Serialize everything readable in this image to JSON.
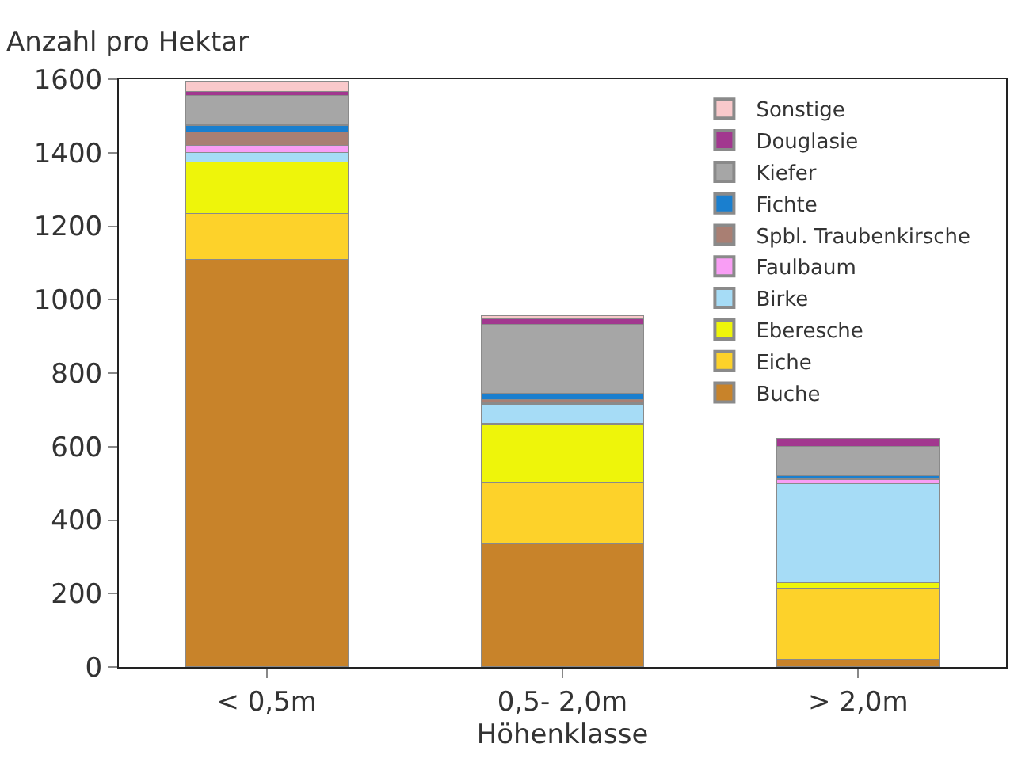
{
  "chart_data": {
    "type": "bar",
    "stacked": true,
    "ylabel": "Anzahl pro Hektar",
    "xlabel": "Höhenklasse",
    "categories": [
      "< 0,5m",
      "0,5- 2,0m",
      "> 2,0m"
    ],
    "ylim": [
      0,
      1600
    ],
    "yticks": [
      0,
      200,
      400,
      600,
      800,
      1000,
      1200,
      1400,
      1600
    ],
    "legend": "top right",
    "series": [
      {
        "name": "Buche",
        "color": "#c8832a",
        "values": [
          1110,
          336,
          20
        ]
      },
      {
        "name": "Eiche",
        "color": "#fdd22a",
        "values": [
          125,
          165,
          195
        ]
      },
      {
        "name": "Eberesche",
        "color": "#eef50a",
        "values": [
          140,
          161,
          14
        ]
      },
      {
        "name": "Birke",
        "color": "#a6dcf6",
        "values": [
          25,
          54,
          271
        ]
      },
      {
        "name": "Faulbaum",
        "color": "#f99ef5",
        "values": [
          20,
          4,
          11
        ]
      },
      {
        "name": "Spbl. Traubenkirsche",
        "color": "#a97f73",
        "values": [
          37,
          8,
          0
        ]
      },
      {
        "name": "Fichte",
        "color": "#1a7fcf",
        "values": [
          18,
          17,
          9
        ]
      },
      {
        "name": "Kiefer",
        "color": "#a6a6a6",
        "values": [
          80,
          188,
          80
        ]
      },
      {
        "name": "Douglasie",
        "color": "#a2378f",
        "values": [
          12,
          14,
          22
        ]
      },
      {
        "name": "Sonstige",
        "color": "#f9c9cb",
        "values": [
          28,
          10,
          0
        ]
      }
    ]
  }
}
